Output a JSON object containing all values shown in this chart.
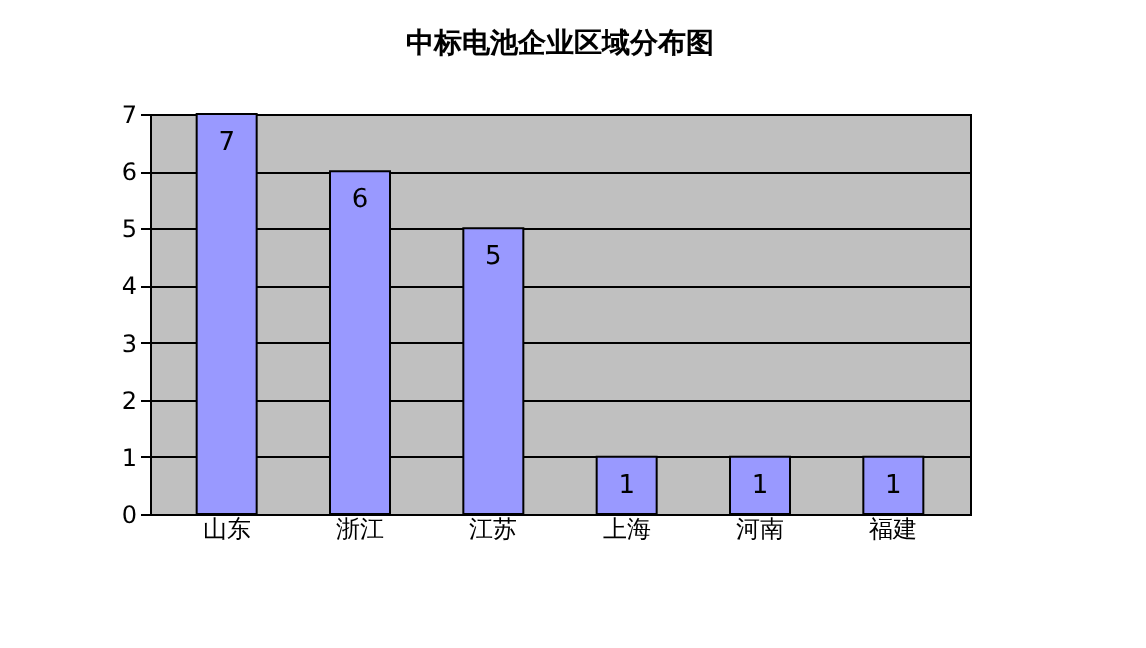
{
  "chart_data": {
    "type": "bar",
    "title": "中标电池企业区域分布图",
    "categories": [
      "山东",
      "浙江",
      "江苏",
      "上海",
      "河南",
      "福建"
    ],
    "values": [
      7,
      6,
      5,
      1,
      1,
      1
    ],
    "color": "#9999ff",
    "ylim": [
      0,
      7
    ],
    "yticks": [
      0,
      1,
      2,
      3,
      4,
      5,
      6,
      7
    ],
    "grid": "y",
    "data_labels": true
  }
}
